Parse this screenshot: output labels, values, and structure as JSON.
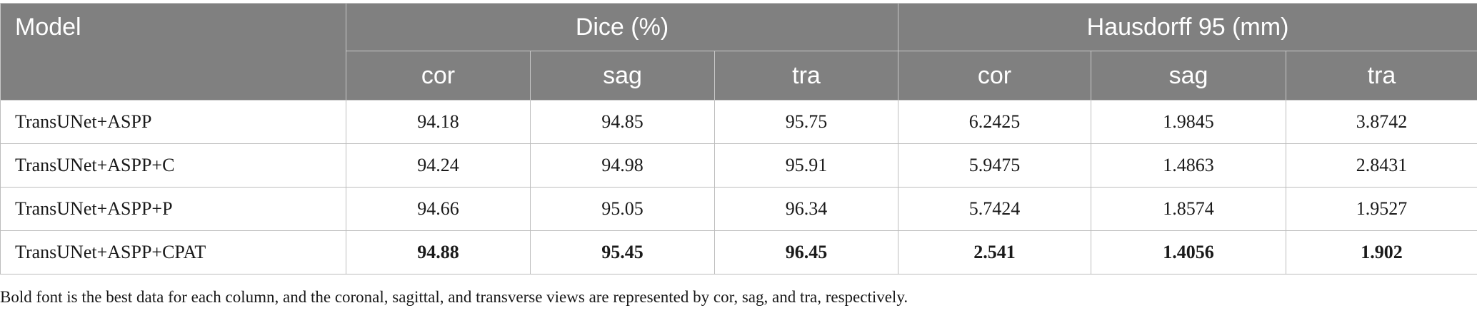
{
  "table": {
    "header": {
      "model": "Model",
      "dice_group": "Dice (%)",
      "hd_group": "Hausdorff 95 (mm)",
      "sub": [
        "cor",
        "sag",
        "tra",
        "cor",
        "sag",
        "tra"
      ]
    },
    "rows": [
      {
        "model": "TransUNet+ASPP",
        "values": [
          "94.18",
          "94.85",
          "95.75",
          "6.2425",
          "1.9845",
          "3.8742"
        ]
      },
      {
        "model": "TransUNet+ASPP+C",
        "values": [
          "94.24",
          "94.98",
          "95.91",
          "5.9475",
          "1.4863",
          "2.8431"
        ]
      },
      {
        "model": "TransUNet+ASPP+P",
        "values": [
          "94.66",
          "95.05",
          "96.34",
          "5.7424",
          "1.8574",
          "1.9527"
        ]
      },
      {
        "model": "TransUNet+ASPP+CPAT",
        "values": [
          "94.88",
          "95.45",
          "96.45",
          "2.541",
          "1.4056",
          "1.902"
        ]
      }
    ]
  },
  "footnote": "Bold font is the best data for each column, and the coronal, sagittal, and transverse views are represented by cor, sag, and tra, respectively.",
  "colors": {
    "header_bg": "#808080",
    "header_text": "#ffffff",
    "border": "#bdbdbd"
  }
}
